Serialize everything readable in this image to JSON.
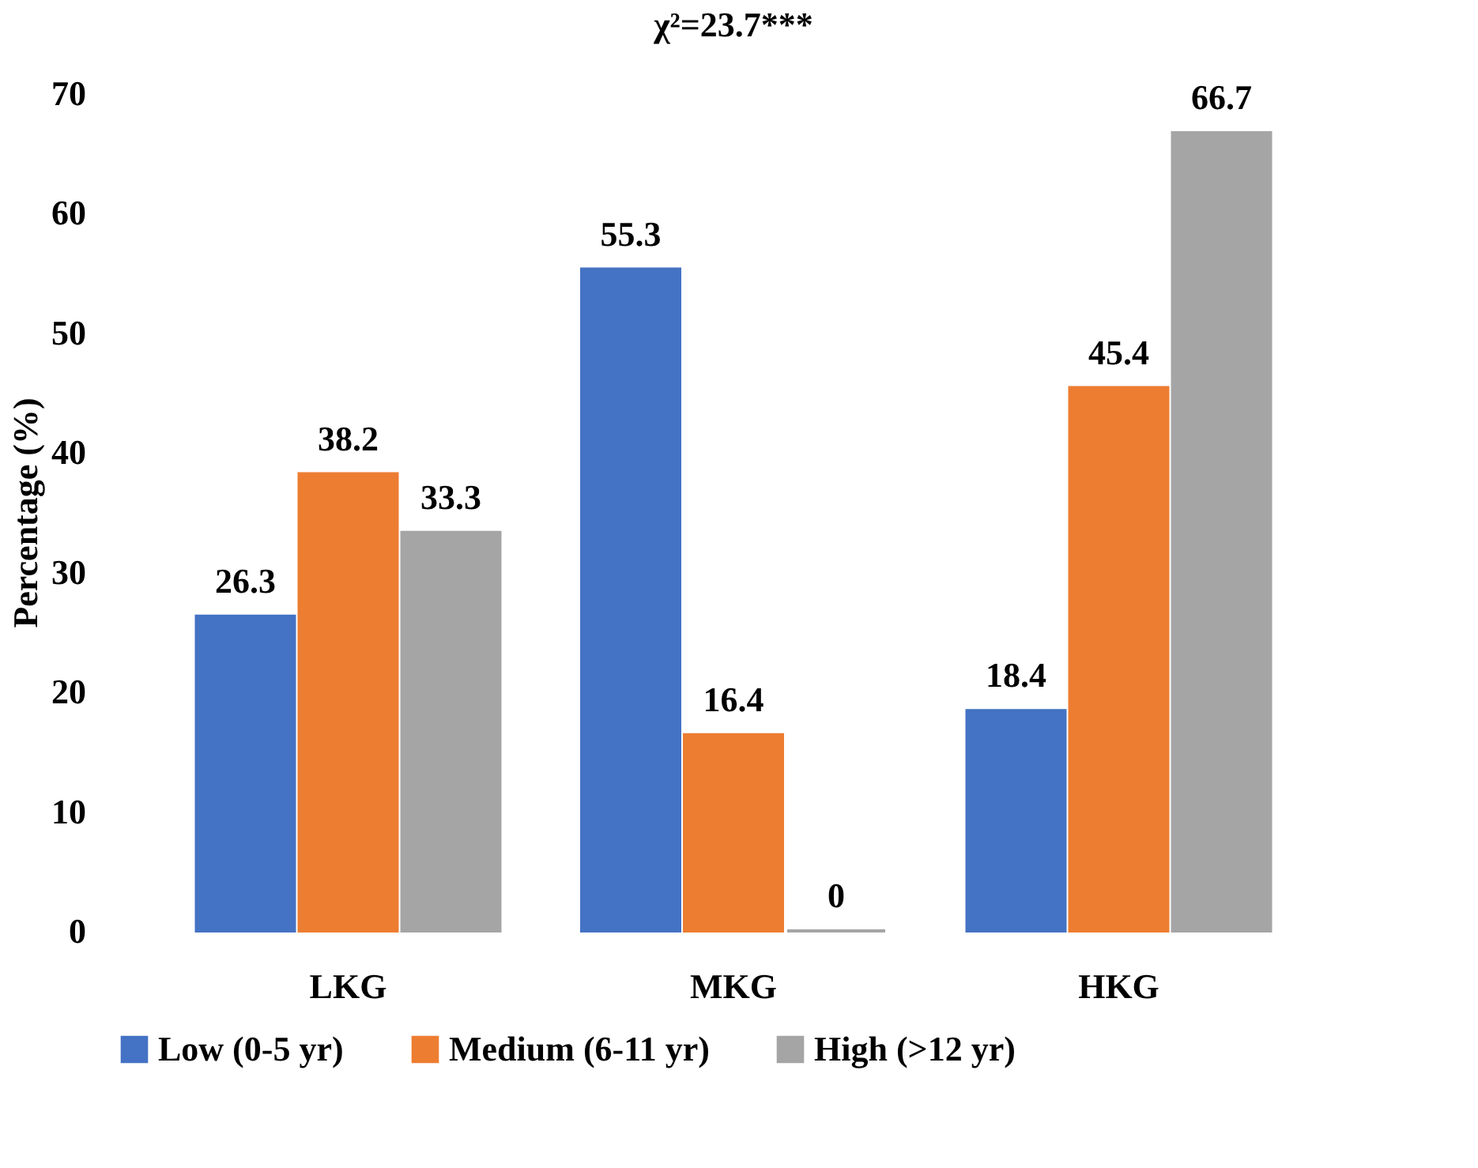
{
  "chart_data": {
    "type": "bar",
    "ylabel": "Percentage (%)",
    "categories": [
      "LKG",
      "MKG",
      "HKG"
    ],
    "series": [
      {
        "name": "Low (0-5 yr)",
        "color": "#4472c4",
        "values": [
          26.3,
          55.3,
          18.4
        ]
      },
      {
        "name": "Medium (6-11 yr)",
        "color": "#ed7d31",
        "values": [
          38.2,
          16.4,
          45.4
        ]
      },
      {
        "name": "High (>12 yr)",
        "color": "#a5a5a5",
        "values": [
          33.3,
          0,
          66.7
        ]
      }
    ],
    "ylim": [
      0,
      70
    ],
    "yticks": [
      0,
      10,
      20,
      30,
      40,
      50,
      60,
      70
    ],
    "grid": false,
    "data_labels": true,
    "legend": "bottom",
    "annotations": [
      "χ²=23.7***"
    ]
  }
}
